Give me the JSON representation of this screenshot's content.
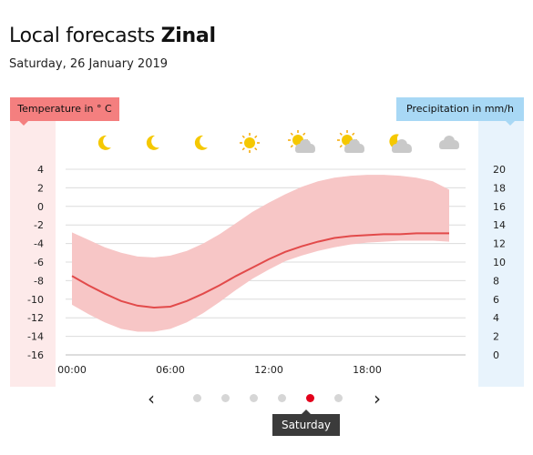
{
  "header": {
    "title_prefix": "Local forecasts",
    "title_place": "Zinal",
    "date": "Saturday, 26 January 2019"
  },
  "legend": {
    "temperature": "Temperature in ° C",
    "precipitation": "Precipitation in mm/h"
  },
  "weather_icons": [
    "moon-icon",
    "moon-icon",
    "moon-icon",
    "sun-icon",
    "sun-cloud-icon",
    "sun-cloud-icon",
    "moon-cloud-icon",
    "cloud-icon"
  ],
  "colors": {
    "temp_line": "#e24a4a",
    "temp_range": "#f7c6c6",
    "temp_header": "#f47f7f",
    "precip_header": "#a8d8f5",
    "active_dot": "#e3001b"
  },
  "chart_data": {
    "type": "line",
    "x_ticks": [
      "00:00",
      "06:00",
      "12:00",
      "18:00"
    ],
    "y_left_ticks": [
      "4",
      "2",
      "0",
      "-2",
      "-4",
      "-6",
      "-8",
      "-10",
      "-12",
      "-14",
      "-16"
    ],
    "y_right_ticks": [
      "20",
      "18",
      "16",
      "14",
      "12",
      "10",
      "8",
      "6",
      "4",
      "2",
      "0"
    ],
    "ylim_left": [
      -16,
      4
    ],
    "ylim_right": [
      0,
      20
    ],
    "x_hours": [
      0,
      1,
      2,
      3,
      4,
      5,
      6,
      7,
      8,
      9,
      10,
      11,
      12,
      13,
      14,
      15,
      16,
      17,
      18,
      19,
      20,
      21,
      22,
      23
    ],
    "series": [
      {
        "values": [
          -7.5,
          -8.5,
          -9.4,
          -10.2,
          -10.7,
          -10.9,
          -10.8,
          -10.2,
          -9.4,
          -8.5,
          -7.5,
          -6.6,
          -5.7,
          -4.9,
          -4.3,
          -3.8,
          -3.4,
          -3.2,
          -3.1,
          -3.0,
          -3.0,
          -2.9,
          -2.9,
          -2.9
        ]
      }
    ],
    "range_upper": [
      -2.8,
      -3.6,
      -4.4,
      -5.0,
      -5.4,
      -5.5,
      -5.3,
      -4.8,
      -4.0,
      -3.0,
      -1.8,
      -0.6,
      0.4,
      1.3,
      2.1,
      2.7,
      3.1,
      3.3,
      3.4,
      3.4,
      3.3,
      3.1,
      2.7,
      1.8
    ],
    "range_lower": [
      -10.6,
      -11.6,
      -12.5,
      -13.2,
      -13.5,
      -13.5,
      -13.2,
      -12.5,
      -11.5,
      -10.3,
      -9.0,
      -7.8,
      -6.8,
      -5.9,
      -5.3,
      -4.8,
      -4.4,
      -4.1,
      -3.9,
      -3.8,
      -3.7,
      -3.7,
      -3.7,
      -3.8
    ]
  },
  "pager": {
    "prev_label": "‹",
    "next_label": "›",
    "dot_count": 6,
    "active_index": 4,
    "tooltip": "Saturday"
  }
}
